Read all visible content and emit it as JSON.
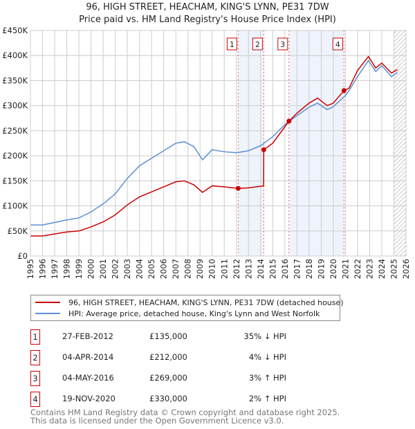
{
  "chart_data": {
    "type": "line",
    "title": "96, HIGH STREET, HEACHAM, KING'S LYNN, PE31 7DW",
    "subtitle": "Price paid vs. HM Land Registry's House Price Index (HPI)",
    "xlim": [
      1995,
      2026
    ],
    "ylim": [
      0,
      450000
    ],
    "yticks": [
      {
        "v": 0,
        "l": "£0"
      },
      {
        "v": 50000,
        "l": "£50K"
      },
      {
        "v": 100000,
        "l": "£100K"
      },
      {
        "v": 150000,
        "l": "£150K"
      },
      {
        "v": 200000,
        "l": "£200K"
      },
      {
        "v": 250000,
        "l": "£250K"
      },
      {
        "v": 300000,
        "l": "£300K"
      },
      {
        "v": 350000,
        "l": "£350K"
      },
      {
        "v": 400000,
        "l": "£400K"
      },
      {
        "v": 450000,
        "l": "£450K"
      }
    ],
    "xticks": [
      "1995",
      "1996",
      "1997",
      "1998",
      "1999",
      "2000",
      "2001",
      "2002",
      "2003",
      "2004",
      "2005",
      "2006",
      "2007",
      "2008",
      "2009",
      "2010",
      "2011",
      "2012",
      "2013",
      "2014",
      "2015",
      "2016",
      "2017",
      "2018",
      "2019",
      "2020",
      "2021",
      "2022",
      "2023",
      "2024",
      "2025",
      "2026"
    ],
    "series": [
      {
        "name": "96, HIGH STREET, HEACHAM, KING'S LYNN, PE31 7DW (detached house)",
        "color": "#cc0000",
        "x": [
          1995,
          1996,
          1997,
          1998,
          1999,
          2000,
          2001,
          2002,
          2003,
          2004,
          2005,
          2006,
          2007,
          2007.7,
          2008.5,
          2009.2,
          2010,
          2011,
          2012.15,
          2013,
          2014.25,
          2014.26,
          2015,
          2016.34,
          2017,
          2018,
          2018.7,
          2019.5,
          2020,
          2020.88,
          2021.3,
          2022,
          2022.9,
          2023.5,
          2024,
          2024.8,
          2025.3
        ],
        "y": [
          40000,
          40000,
          44000,
          48000,
          50000,
          58000,
          68000,
          82000,
          102000,
          118000,
          128000,
          138000,
          148000,
          150000,
          142000,
          127000,
          140000,
          138000,
          135000,
          136000,
          140000,
          212000,
          225000,
          269000,
          285000,
          305000,
          315000,
          300000,
          305000,
          330000,
          335000,
          370000,
          398000,
          375000,
          385000,
          365000,
          372000
        ]
      },
      {
        "name": "HPI: Average price, detached house, King's Lynn and West Norfolk",
        "color": "#5b8fd4",
        "x": [
          1995,
          1996,
          1997,
          1998,
          1999,
          2000,
          2001,
          2002,
          2003,
          2004,
          2005,
          2006,
          2007,
          2007.7,
          2008.5,
          2009.2,
          2010,
          2011,
          2012,
          2013,
          2014,
          2015,
          2016,
          2017,
          2018,
          2018.7,
          2019.5,
          2020,
          2020.9,
          2021.3,
          2022,
          2022.9,
          2023.5,
          2024,
          2024.8,
          2025.3
        ],
        "y": [
          62000,
          62000,
          67000,
          72000,
          76000,
          88000,
          104000,
          124000,
          155000,
          180000,
          195000,
          210000,
          225000,
          228000,
          218000,
          192000,
          212000,
          208000,
          206000,
          210000,
          220000,
          238000,
          262000,
          280000,
          297000,
          305000,
          292000,
          298000,
          318000,
          330000,
          358000,
          390000,
          368000,
          380000,
          358000,
          366000
        ]
      }
    ],
    "sales": [
      {
        "n": "1",
        "x": 2012.15,
        "y": 135000
      },
      {
        "n": "2",
        "x": 2014.26,
        "y": 212000
      },
      {
        "n": "3",
        "x": 2016.34,
        "y": 269000
      },
      {
        "n": "4",
        "x": 2020.88,
        "y": 330000
      }
    ],
    "shaded": [
      [
        2012.15,
        2014.26
      ],
      [
        2016.34,
        2020.88
      ]
    ],
    "future_from": 2025.0
  },
  "legend": {
    "red": "96, HIGH STREET, HEACHAM, KING'S LYNN, PE31 7DW (detached house)",
    "blue": "HPI: Average price, detached house, King's Lynn and West Norfolk"
  },
  "table": [
    {
      "n": "1",
      "date": "27-FEB-2012",
      "price": "£135,000",
      "hpi": "35% ↓ HPI"
    },
    {
      "n": "2",
      "date": "04-APR-2014",
      "price": "£212,000",
      "hpi": "4% ↓ HPI"
    },
    {
      "n": "3",
      "date": "04-MAY-2016",
      "price": "£269,000",
      "hpi": "3% ↑ HPI"
    },
    {
      "n": "4",
      "date": "19-NOV-2020",
      "price": "£330,000",
      "hpi": "2% ↑ HPI"
    }
  ],
  "footer": {
    "line1": "Contains HM Land Registry data © Crown copyright and database right 2025.",
    "line2": "This data is licensed under the Open Government Licence v3.0."
  }
}
